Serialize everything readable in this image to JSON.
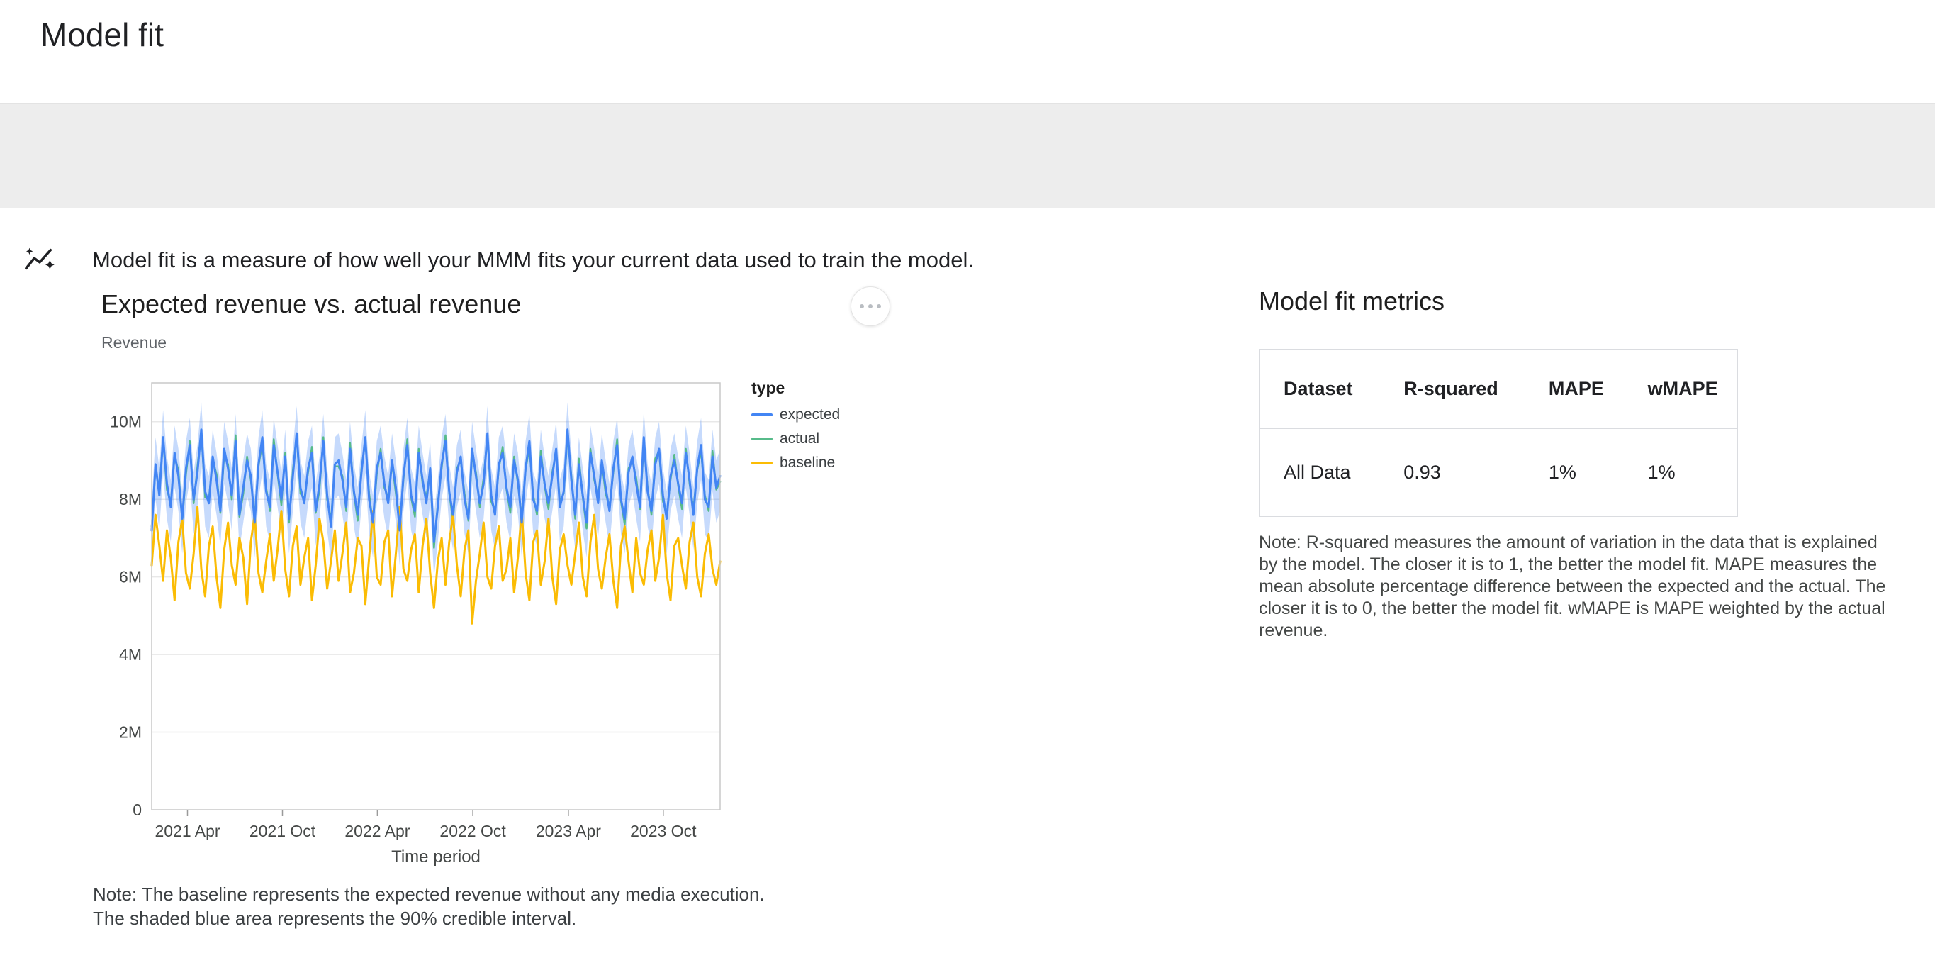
{
  "header": {
    "title": "Model fit"
  },
  "banner": {
    "icon": "insights-icon",
    "text": "Model fit is a measure of how well your MMM fits your current data used to train the model."
  },
  "chart_section": {
    "title": "Expected revenue vs. actual revenue",
    "y_axis_title": "Revenue",
    "note_line1": "Note: The baseline represents the expected revenue without any media execution.",
    "note_line2": "The shaded blue area represents the 90% credible interval."
  },
  "legend": {
    "title": "type",
    "items": [
      {
        "label": "expected",
        "color": "#4285f4"
      },
      {
        "label": "actual",
        "color": "#57bb8a"
      },
      {
        "label": "baseline",
        "color": "#fbbc04"
      }
    ]
  },
  "chart_data": {
    "type": "line",
    "title": "Expected revenue vs. actual revenue",
    "xlabel": "Time period",
    "ylabel": "Revenue",
    "units": "millions",
    "ylim": [
      0,
      11
    ],
    "grid": true,
    "legend_position": "right",
    "y_ticks": [
      {
        "value": 0,
        "label": "0"
      },
      {
        "value": 2,
        "label": "2M"
      },
      {
        "value": 4,
        "label": "4M"
      },
      {
        "value": 6,
        "label": "6M"
      },
      {
        "value": 8,
        "label": "8M"
      },
      {
        "value": 10,
        "label": "10M"
      }
    ],
    "x_ticks": [
      {
        "pos": 0.063,
        "label": "2021 Apr"
      },
      {
        "pos": 0.23,
        "label": "2021 Oct"
      },
      {
        "pos": 0.397,
        "label": "2022 Apr"
      },
      {
        "pos": 0.565,
        "label": "2022 Oct"
      },
      {
        "pos": 0.733,
        "label": "2023 Apr"
      },
      {
        "pos": 0.9,
        "label": "2023 Oct"
      }
    ],
    "band": {
      "series": "expected",
      "upper_offset": 0.7,
      "lower_offset": 0.9,
      "color": "#4285f4",
      "opacity": 0.3
    },
    "draw_order": [
      "actual",
      "baseline",
      "expected"
    ],
    "series": [
      {
        "name": "expected",
        "color": "#4285f4",
        "width": 3,
        "values": [
          7.2,
          8.9,
          8.1,
          9.6,
          8.4,
          7.8,
          9.2,
          8.6,
          7.5,
          8.8,
          9.4,
          8.0,
          8.7,
          9.8,
          8.2,
          7.9,
          9.1,
          8.5,
          7.7,
          9.3,
          8.8,
          8.1,
          9.5,
          7.6,
          8.3,
          9.0,
          8.6,
          7.4,
          8.9,
          9.6,
          8.2,
          7.8,
          9.4,
          8.7,
          8.0,
          9.1,
          7.5,
          8.6,
          9.7,
          8.3,
          7.9,
          8.8,
          9.2,
          7.7,
          8.4,
          9.5,
          8.1,
          7.3,
          8.9,
          9.0,
          8.5,
          7.8,
          9.3,
          8.2,
          7.6,
          8.7,
          9.6,
          8.0,
          7.4,
          8.8,
          9.2,
          8.4,
          7.9,
          9.0,
          8.3,
          7.2,
          8.6,
          9.4,
          8.1,
          7.7,
          9.2,
          8.5,
          7.9,
          8.8,
          6.9,
          7.8,
          8.9,
          9.5,
          8.2,
          7.6,
          8.7,
          9.1,
          8.0,
          7.5,
          9.3,
          8.6,
          7.9,
          8.4,
          9.7,
          8.1,
          7.6,
          8.9,
          9.2,
          8.3,
          7.8,
          9.0,
          8.5,
          7.4,
          8.8,
          9.5,
          8.0,
          7.7,
          9.1,
          8.4,
          7.9,
          8.6,
          9.3,
          7.8,
          8.2,
          9.8,
          8.5,
          7.6,
          8.9,
          8.1,
          7.4,
          9.2,
          8.6,
          7.9,
          9.0,
          8.3,
          7.7,
          8.8,
          9.4,
          8.0,
          7.5,
          8.7,
          9.1,
          8.4,
          7.8,
          9.6,
          8.2,
          7.7,
          8.9,
          9.3,
          8.1,
          7.5,
          8.6,
          9.0,
          8.4,
          7.9,
          9.2,
          8.5,
          7.6,
          8.8,
          9.4,
          8.0,
          7.8,
          9.1,
          8.3,
          8.6
        ]
      },
      {
        "name": "actual",
        "color": "#57bb8a",
        "width": 2.5,
        "values": [
          7.3,
          8.8,
          8.25,
          9.55,
          8.25,
          7.9,
          9.1,
          8.75,
          7.45,
          8.65,
          9.5,
          7.9,
          8.85,
          9.75,
          8.05,
          8.0,
          9.0,
          8.65,
          7.65,
          9.15,
          8.9,
          8.0,
          9.65,
          7.55,
          8.15,
          9.1,
          8.5,
          7.55,
          8.85,
          9.45,
          8.3,
          7.7,
          9.55,
          8.65,
          7.85,
          9.2,
          7.4,
          8.75,
          9.65,
          8.15,
          8.0,
          8.7,
          9.35,
          7.65,
          8.25,
          9.6,
          8.0,
          7.45,
          8.85,
          8.85,
          8.6,
          7.7,
          9.45,
          8.15,
          7.45,
          8.8,
          9.5,
          8.15,
          7.35,
          8.65,
          9.3,
          8.3,
          8.05,
          8.95,
          8.15,
          7.3,
          8.5,
          9.55,
          8.05,
          7.55,
          9.3,
          8.4,
          8.05,
          8.75,
          6.75,
          7.9,
          8.8,
          9.65,
          8.15,
          7.45,
          8.8,
          9.0,
          8.15,
          7.45,
          9.15,
          8.7,
          7.8,
          8.55,
          9.65,
          7.95,
          7.7,
          8.8,
          9.35,
          8.25,
          7.65,
          9.1,
          8.4,
          7.55,
          8.75,
          9.35,
          8.1,
          7.6,
          9.25,
          8.35,
          7.75,
          8.7,
          9.2,
          7.95,
          8.15,
          9.65,
          8.6,
          7.5,
          9.05,
          8.05,
          7.25,
          9.3,
          8.5,
          8.05,
          8.95,
          8.15,
          7.8,
          8.7,
          9.55,
          7.95,
          7.35,
          8.8,
          9.0,
          8.55,
          7.75,
          9.45,
          8.3,
          7.6,
          9.05,
          9.25,
          7.95,
          7.6,
          8.5,
          9.15,
          8.35,
          7.75,
          9.3,
          8.4,
          7.75,
          8.75,
          9.25,
          8.1,
          7.7,
          9.25,
          8.25,
          8.45
        ]
      },
      {
        "name": "baseline",
        "color": "#fbbc04",
        "width": 3,
        "values": [
          6.3,
          7.6,
          6.8,
          5.9,
          7.2,
          6.5,
          5.4,
          6.9,
          7.5,
          6.1,
          5.7,
          6.6,
          7.8,
          6.2,
          5.5,
          6.8,
          7.3,
          6.0,
          5.2,
          6.7,
          7.4,
          6.3,
          5.8,
          7.0,
          6.5,
          5.3,
          6.9,
          7.6,
          6.1,
          5.6,
          6.4,
          7.1,
          5.9,
          6.7,
          7.7,
          6.2,
          5.5,
          6.8,
          7.3,
          5.8,
          6.5,
          7.0,
          5.4,
          6.3,
          7.5,
          6.9,
          5.7,
          6.4,
          7.2,
          5.9,
          6.6,
          7.4,
          5.6,
          6.1,
          7.0,
          6.8,
          5.3,
          6.5,
          7.7,
          6.0,
          5.8,
          6.9,
          7.2,
          5.5,
          6.6,
          7.8,
          6.2,
          5.9,
          6.7,
          7.1,
          5.6,
          6.8,
          7.5,
          6.1,
          5.2,
          6.4,
          7.0,
          5.8,
          6.9,
          7.6,
          6.3,
          5.5,
          6.7,
          7.2,
          4.8,
          5.9,
          6.6,
          7.4,
          6.0,
          5.7,
          6.8,
          7.3,
          5.9,
          6.2,
          7.0,
          5.6,
          6.5,
          7.7,
          6.1,
          5.4,
          6.9,
          7.2,
          5.8,
          6.4,
          7.5,
          6.0,
          5.3,
          6.7,
          7.1,
          6.3,
          5.8,
          6.6,
          7.4,
          6.0,
          5.5,
          6.9,
          7.6,
          6.2,
          5.7,
          6.5,
          7.1,
          5.9,
          5.2,
          6.8,
          7.3,
          6.4,
          5.6,
          7.0,
          6.1,
          5.8,
          6.7,
          7.2,
          5.9,
          6.5,
          7.6,
          6.1,
          5.4,
          6.8,
          7.0,
          6.3,
          5.7,
          6.9,
          7.4,
          6.0,
          5.5,
          6.6,
          7.1,
          6.2,
          5.8,
          6.4
        ]
      }
    ]
  },
  "metrics": {
    "title": "Model fit metrics",
    "table": {
      "headers": [
        "Dataset",
        "R-squared",
        "MAPE",
        "wMAPE"
      ],
      "rows": [
        [
          "All Data",
          "0.93",
          "1%",
          "1%"
        ]
      ]
    },
    "note": "Note: R-squared measures the amount of variation in the data that is explained by the model. The closer it is to 1, the better the model fit. MAPE measures the mean absolute percentage difference between the expected and the actual. The closer it is to 0, the better the model fit. wMAPE is MAPE weighted by the actual revenue."
  }
}
